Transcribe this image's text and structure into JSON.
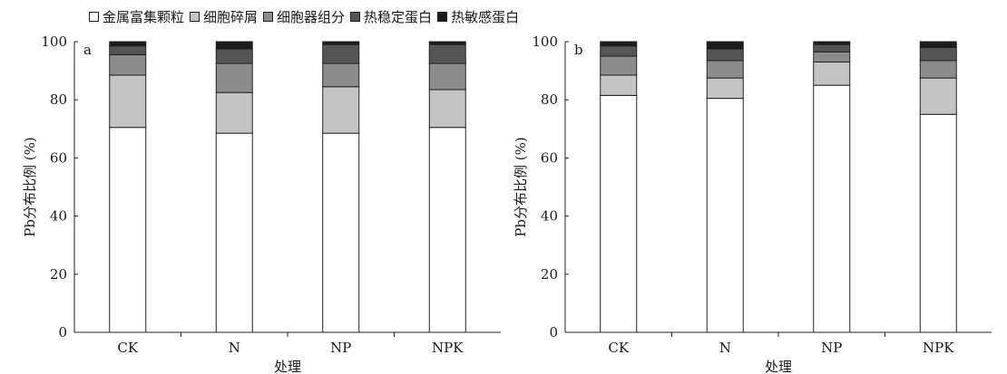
{
  "legend": [
    {
      "label": "金属富集颗粒",
      "color": "#ffffff"
    },
    {
      "label": "细胞碎屑",
      "color": "#c4c4c4"
    },
    {
      "label": "细胞器组分",
      "color": "#8c8c8c"
    },
    {
      "label": "热稳定蛋白",
      "color": "#555555"
    },
    {
      "label": "热敏感蛋白",
      "color": "#1c1c1c"
    }
  ],
  "chart_data": [
    {
      "type": "bar",
      "stacked": true,
      "panel_label": "a",
      "categories": [
        "CK",
        "N",
        "NP",
        "NPK"
      ],
      "xlabel": "处理",
      "ylabel": "Pb分布比例 (%)",
      "ylim": [
        0,
        100
      ],
      "yticks": [
        0,
        20,
        40,
        60,
        80,
        100
      ],
      "series": [
        {
          "name": "金属富集颗粒",
          "values": [
            70.5,
            68.5,
            68.5,
            70.5
          ]
        },
        {
          "name": "细胞碎屑",
          "values": [
            18.0,
            14.0,
            16.0,
            13.0
          ]
        },
        {
          "name": "细胞器组分",
          "values": [
            7.0,
            10.0,
            8.0,
            9.0
          ]
        },
        {
          "name": "热稳定蛋白",
          "values": [
            3.0,
            5.0,
            6.5,
            6.5
          ]
        },
        {
          "name": "热敏感蛋白",
          "values": [
            1.5,
            2.5,
            1.0,
            1.0
          ]
        }
      ]
    },
    {
      "type": "bar",
      "stacked": true,
      "panel_label": "b",
      "categories": [
        "CK",
        "N",
        "NP",
        "NPK"
      ],
      "xlabel": "处理",
      "ylabel": "Pb分布比例 (%)",
      "ylim": [
        0,
        100
      ],
      "yticks": [
        0,
        20,
        40,
        60,
        80,
        100
      ],
      "series": [
        {
          "name": "金属富集颗粒",
          "values": [
            81.5,
            80.5,
            85.0,
            75.0
          ]
        },
        {
          "name": "细胞碎屑",
          "values": [
            7.0,
            7.0,
            8.0,
            12.5
          ]
        },
        {
          "name": "细胞器组分",
          "values": [
            6.5,
            6.0,
            3.5,
            6.0
          ]
        },
        {
          "name": "热稳定蛋白",
          "values": [
            3.5,
            4.0,
            2.5,
            4.5
          ]
        },
        {
          "name": "热敏感蛋白",
          "values": [
            1.5,
            2.5,
            1.0,
            2.0
          ]
        }
      ]
    }
  ]
}
